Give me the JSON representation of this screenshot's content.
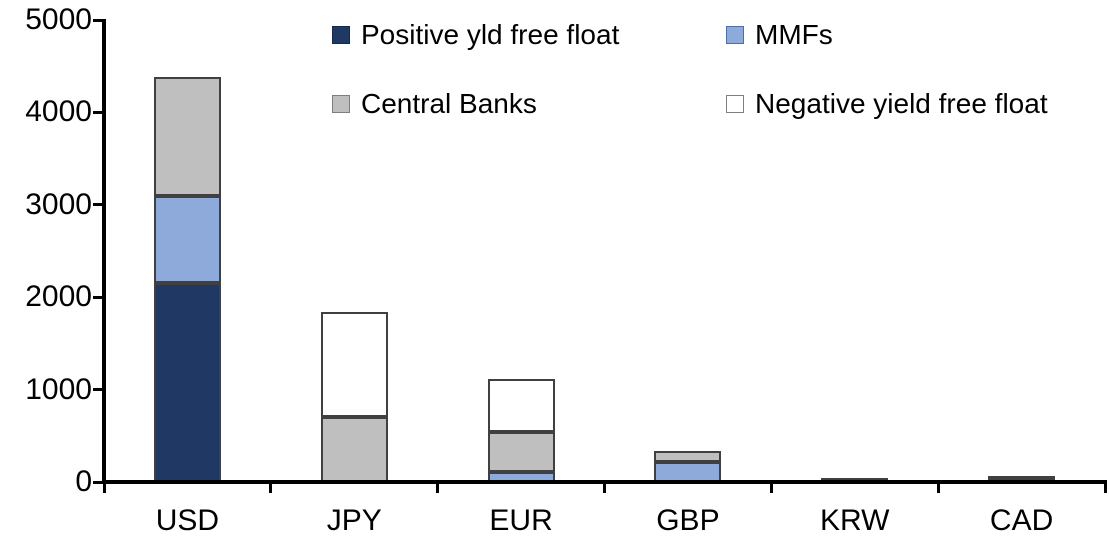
{
  "chart_data": {
    "type": "bar",
    "stacked": true,
    "title": "",
    "xlabel": "",
    "ylabel": "",
    "categories": [
      "USD",
      "JPY",
      "EUR",
      "GBP",
      "KRW",
      "CAD"
    ],
    "series": [
      {
        "name": "Positive yld free float",
        "color": "#1F3864",
        "values": [
          2150,
          0,
          0,
          0,
          45,
          35
        ]
      },
      {
        "name": "MMFs",
        "color": "#8EAADB",
        "values": [
          940,
          0,
          110,
          220,
          0,
          0
        ]
      },
      {
        "name": "Central Banks",
        "color": "#BFBFBF",
        "values": [
          1290,
          700,
          430,
          115,
          0,
          35
        ]
      },
      {
        "name": "Negative yield free float",
        "color": "#FFFFFF",
        "values": [
          0,
          1140,
          570,
          0,
          0,
          0
        ]
      }
    ],
    "totals": [
      4380,
      1840,
      1110,
      335,
      45,
      70
    ],
    "ylim": [
      0,
      5000
    ],
    "yticks": [
      0,
      1000,
      2000,
      3000,
      4000,
      5000
    ],
    "grid": false,
    "legend_position": "top",
    "axis_color": "#000000",
    "bar_border_color": "#404040",
    "background_color": "#FFFFFF"
  }
}
